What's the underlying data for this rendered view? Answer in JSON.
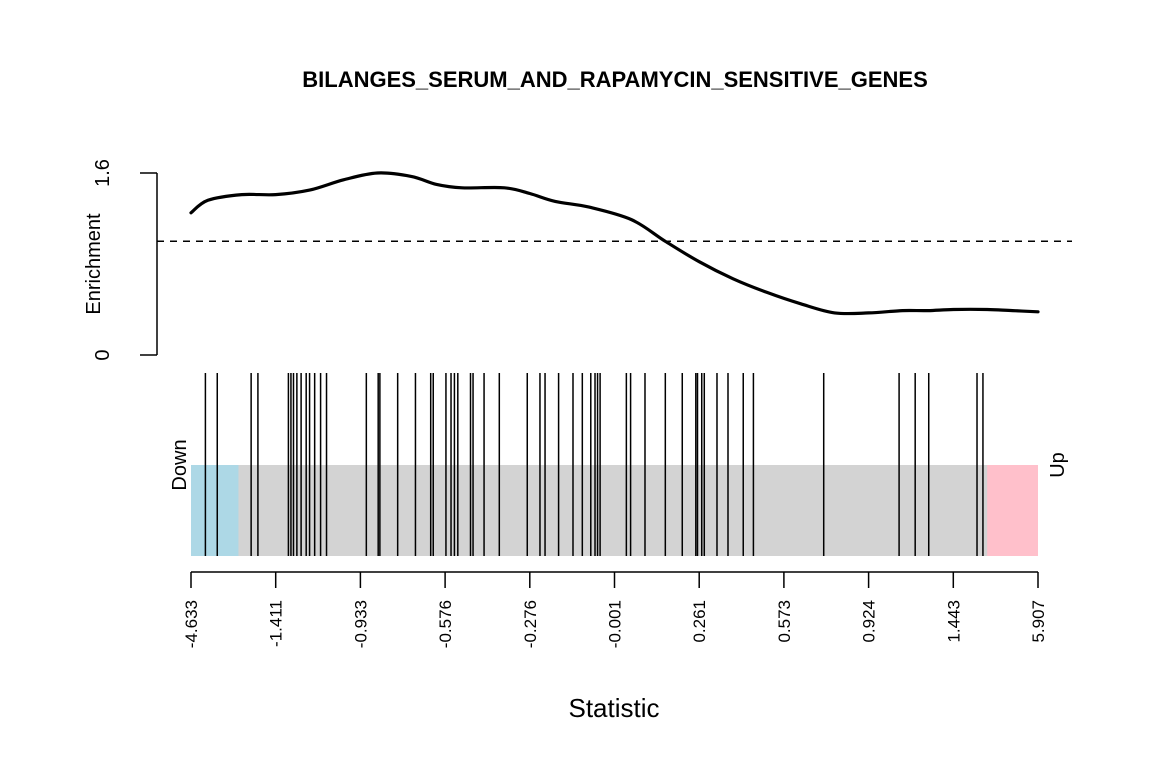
{
  "chart_data": {
    "type": "line",
    "title": "BILANGES_SERUM_AND_RAPAMYCIN_SENSITIVE_GENES",
    "enrichment": {
      "ylabel": "Enrichment",
      "ylim": [
        0,
        1.6
      ],
      "y_ticks": [
        "0",
        "1.6"
      ],
      "reference_line": 1.0,
      "x_range": [
        0,
        1
      ],
      "curve": {
        "x": [
          0,
          0.02,
          0.06,
          0.1,
          0.14,
          0.18,
          0.22,
          0.26,
          0.29,
          0.32,
          0.37,
          0.4,
          0.43,
          0.47,
          0.52,
          0.56,
          0.6,
          0.64,
          0.68,
          0.72,
          0.76,
          0.8,
          0.84,
          0.87,
          0.9,
          0.94,
          0.97,
          1.0
        ],
        "y": [
          1.25,
          1.36,
          1.41,
          1.41,
          1.45,
          1.54,
          1.6,
          1.57,
          1.5,
          1.47,
          1.47,
          1.42,
          1.35,
          1.3,
          1.19,
          1.0,
          0.82,
          0.67,
          0.55,
          0.45,
          0.37,
          0.37,
          0.39,
          0.39,
          0.4,
          0.4,
          0.39,
          0.38
        ]
      }
    },
    "barcode": {
      "down_label": "Down",
      "up_label": "Up",
      "down_color": "#add8e6",
      "up_color": "#ffc0cb",
      "middle_color": "#d3d3d3",
      "down_end": 0.056,
      "up_start": 0.94,
      "positions": [
        0.017,
        0.031,
        0.071,
        0.079,
        0.115,
        0.118,
        0.121,
        0.125,
        0.13,
        0.136,
        0.14,
        0.146,
        0.153,
        0.16,
        0.207,
        0.221,
        0.223,
        0.244,
        0.265,
        0.283,
        0.286,
        0.301,
        0.307,
        0.311,
        0.315,
        0.33,
        0.333,
        0.346,
        0.364,
        0.397,
        0.412,
        0.418,
        0.434,
        0.451,
        0.462,
        0.472,
        0.477,
        0.48,
        0.483,
        0.514,
        0.519,
        0.536,
        0.56,
        0.58,
        0.596,
        0.598,
        0.603,
        0.606,
        0.621,
        0.634,
        0.652,
        0.664,
        0.747,
        0.836,
        0.855,
        0.871,
        0.928,
        0.935
      ]
    },
    "x_axis": {
      "xlabel": "Statistic",
      "tick_labels": [
        "-4.633",
        "-1.411",
        "-0.933",
        "-0.576",
        "-0.276",
        "-0.001",
        "0.261",
        "0.573",
        "0.924",
        "1.443",
        "5.907"
      ]
    }
  }
}
